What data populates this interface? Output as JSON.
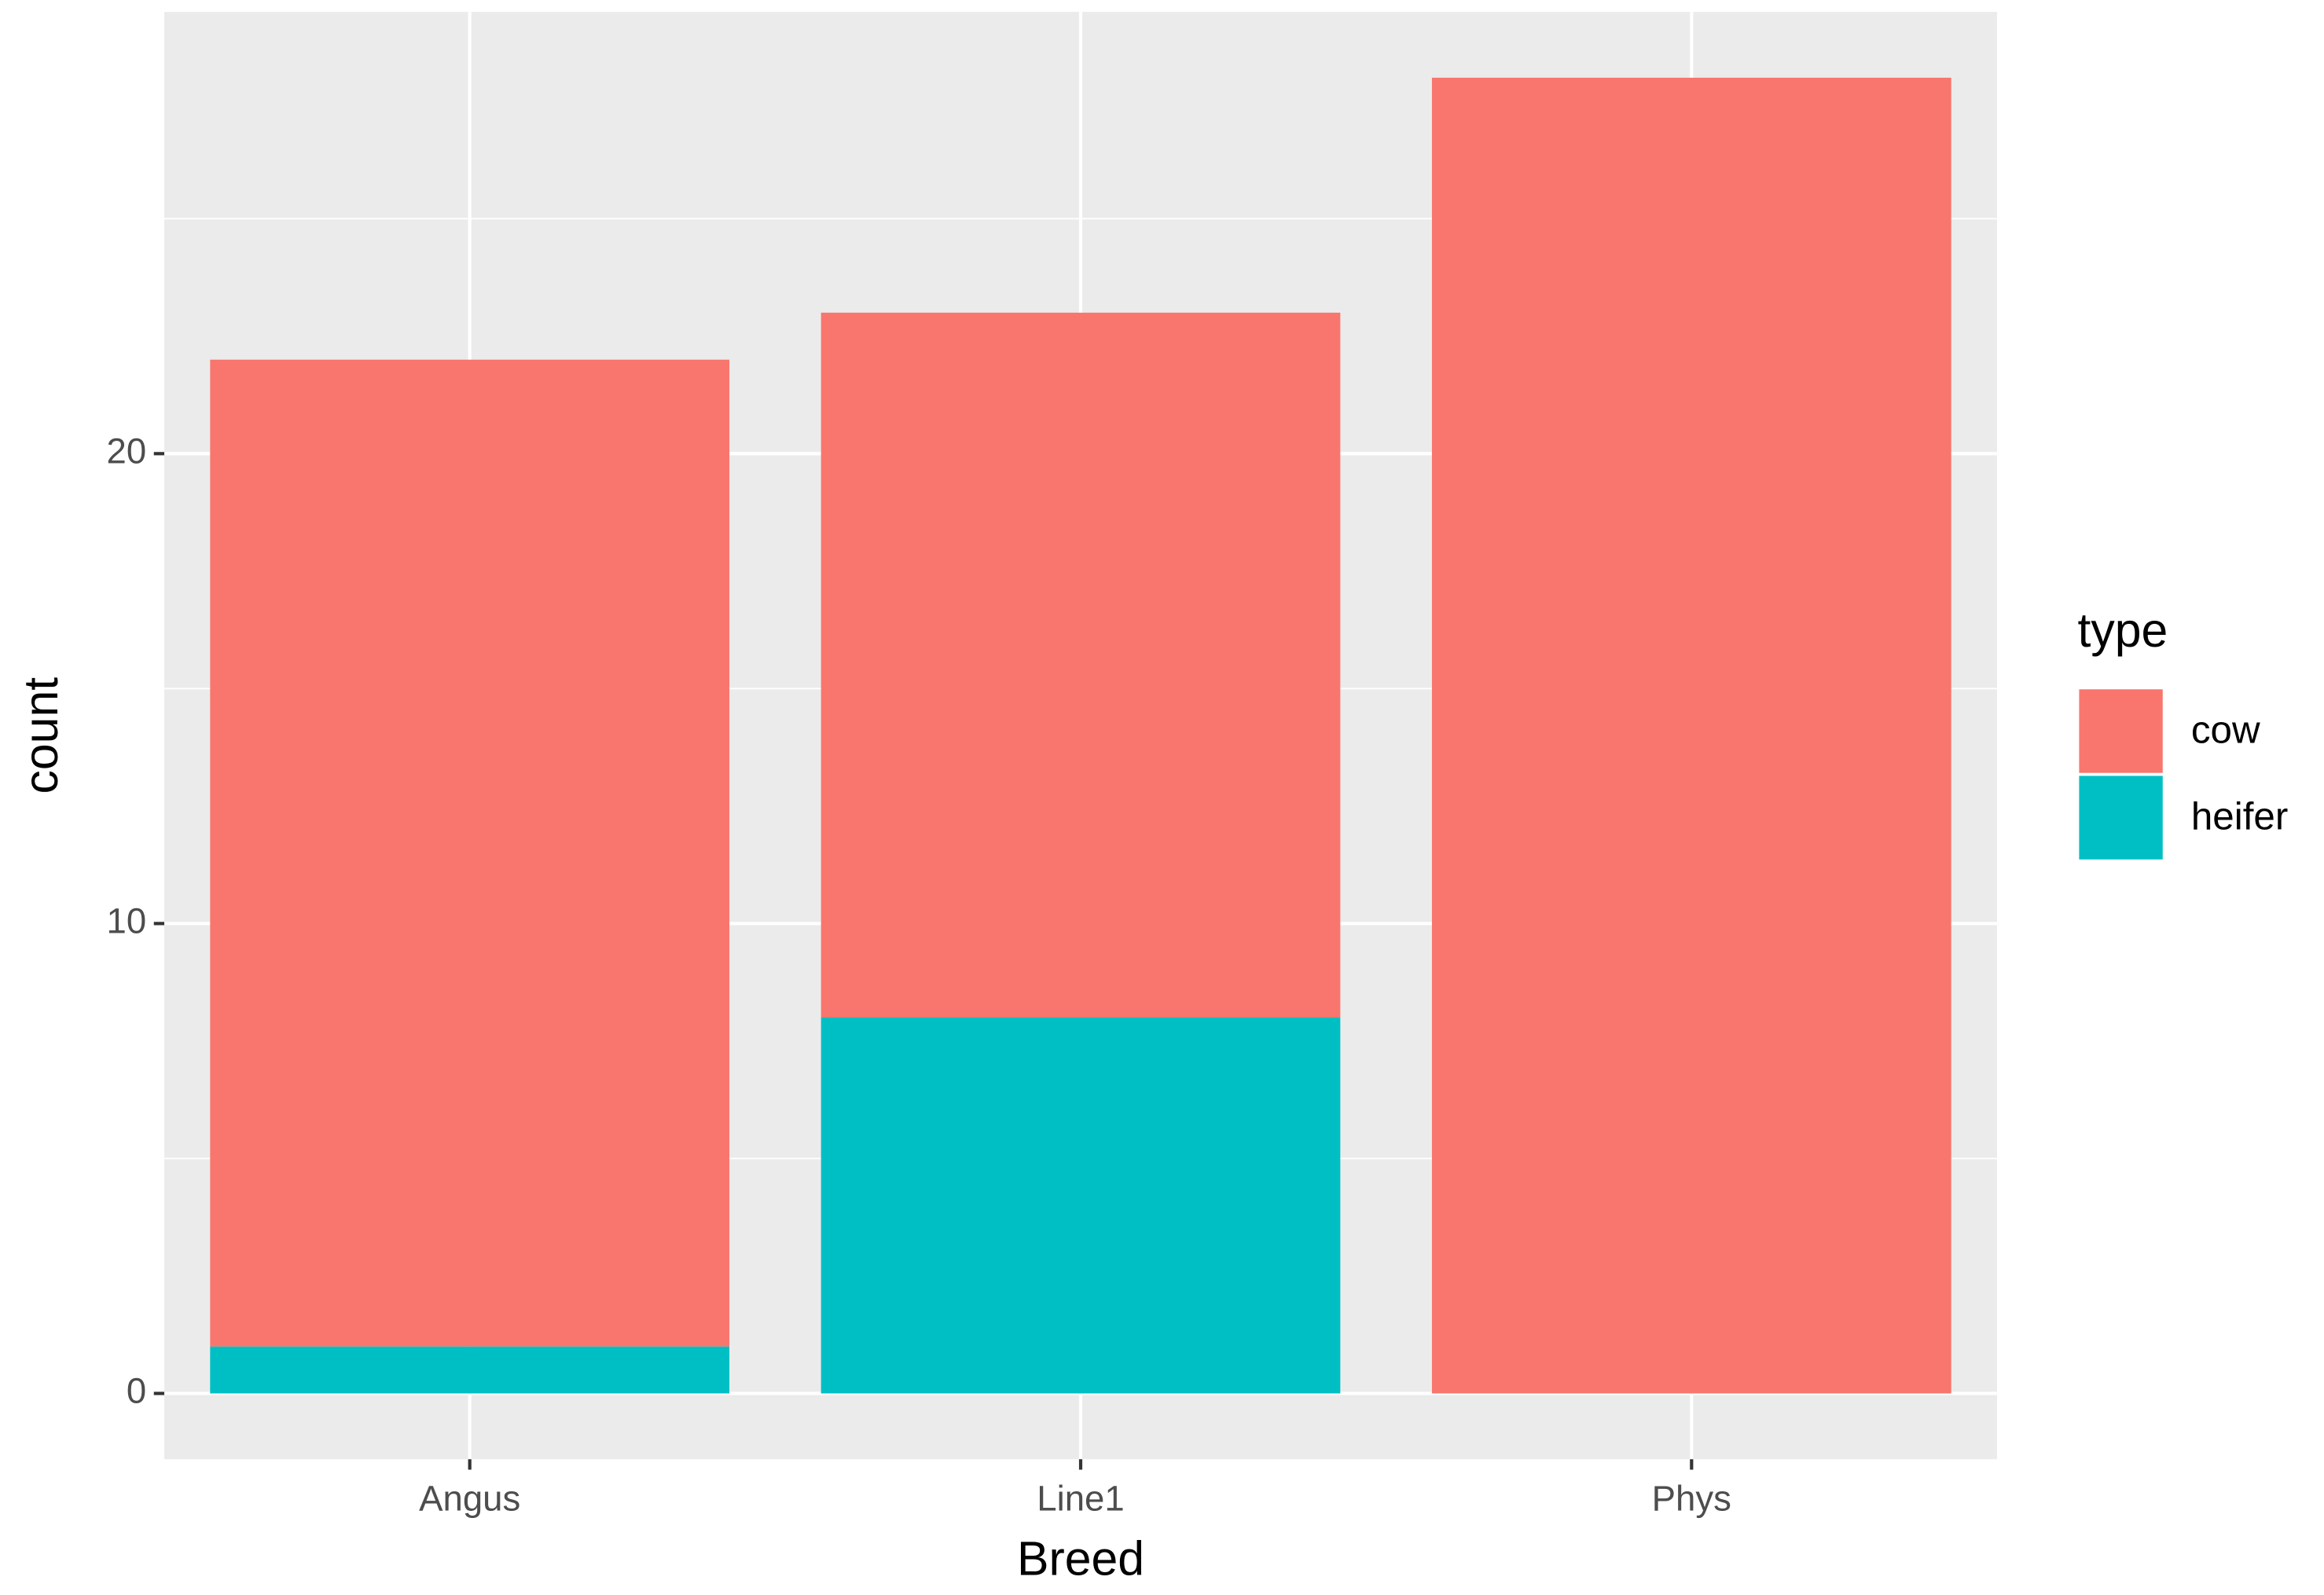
{
  "chart_data": {
    "type": "stacked_bar",
    "xlabel": "Breed",
    "ylabel": "count",
    "categories": [
      "Angus",
      "Line1",
      "Phys"
    ],
    "series": [
      {
        "name": "cow",
        "color": "#f8766d",
        "values": [
          21,
          15,
          28
        ]
      },
      {
        "name": "heifer",
        "color": "#00bfc4",
        "values": [
          1,
          8,
          0
        ]
      }
    ],
    "legend_title": "type",
    "legend": "right",
    "ylim": [
      -1.4,
      29.4
    ],
    "yticks": [
      0,
      10,
      20
    ],
    "grid": true,
    "minor_grid": true,
    "panel_color": "#ebebeb",
    "grid_color": "#ffffff"
  }
}
